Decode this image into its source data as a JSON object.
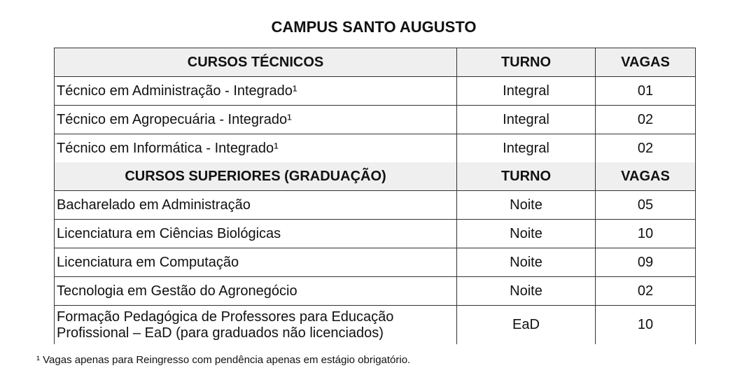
{
  "title": "CAMPUS SANTO AUGUSTO",
  "sections": [
    {
      "header": {
        "course": "CURSOS TÉCNICOS",
        "turno": "TURNO",
        "vagas": "VAGAS"
      },
      "rows": [
        {
          "course": "Técnico em Administração - Integrado¹",
          "turno": "Integral",
          "vagas": "01"
        },
        {
          "course": "Técnico em Agropecuária - Integrado¹",
          "turno": "Integral",
          "vagas": "02"
        },
        {
          "course": "Técnico em Informática - Integrado¹",
          "turno": "Integral",
          "vagas": "02"
        }
      ]
    },
    {
      "header": {
        "course": "CURSOS SUPERIORES (GRADUAÇÃO)",
        "turno": "TURNO",
        "vagas": "VAGAS"
      },
      "rows": [
        {
          "course": "Bacharelado em Administração",
          "turno": "Noite",
          "vagas": "05"
        },
        {
          "course": "Licenciatura em Ciências Biológicas",
          "turno": "Noite",
          "vagas": "10"
        },
        {
          "course": "Licenciatura em Computação",
          "turno": "Noite",
          "vagas": "09"
        },
        {
          "course": "Tecnologia em Gestão do Agronegócio",
          "turno": "Noite",
          "vagas": "02"
        },
        {
          "course": "Formação Pedagógica de Professores para Educação Profissional – EaD (para graduados não licenciados)",
          "turno": "EaD",
          "vagas": "10"
        }
      ]
    }
  ],
  "footnote": "¹ Vagas apenas para Reingresso com pendência apenas em estágio obrigatório."
}
